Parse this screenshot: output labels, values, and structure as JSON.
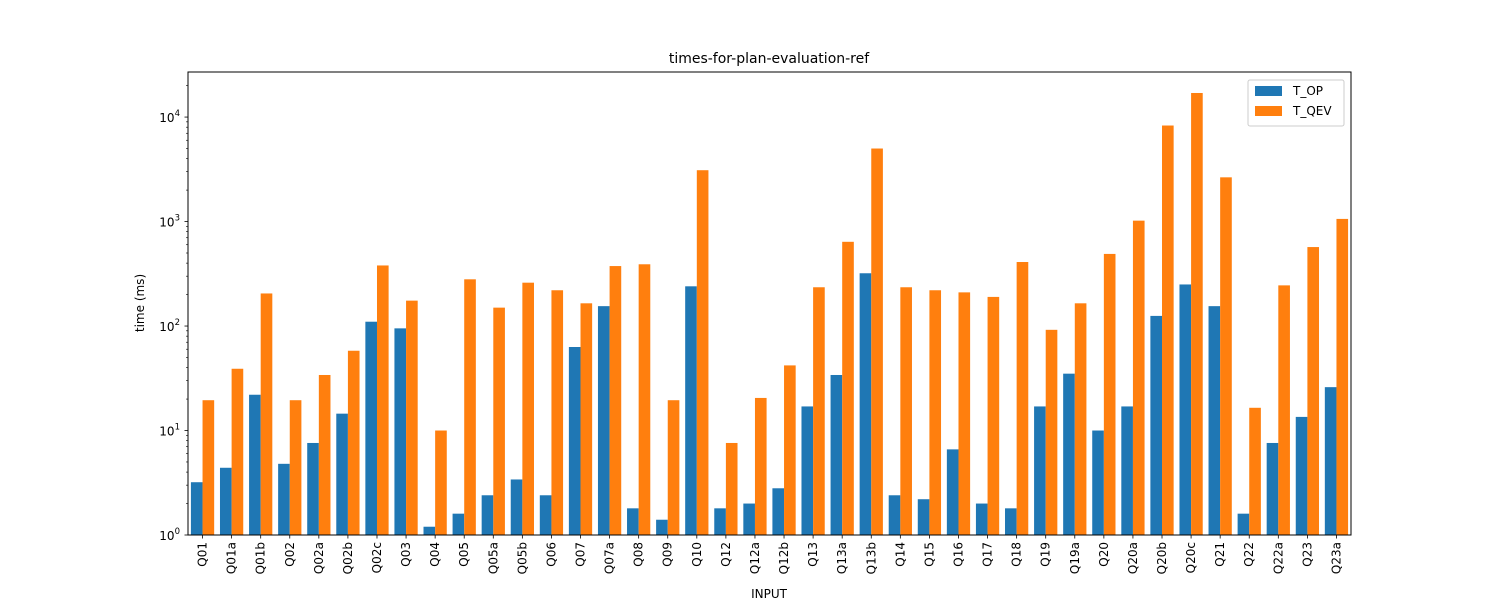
{
  "chart_data": {
    "type": "bar",
    "title": "times-for-plan-evaluation-ref",
    "xlabel": "INPUT",
    "ylabel": "time (ms)",
    "yscale": "log",
    "ylim": [
      1,
      27000
    ],
    "yticks": [
      {
        "value": 1,
        "base": "10",
        "exp": "0"
      },
      {
        "value": 10,
        "base": "10",
        "exp": "1"
      },
      {
        "value": 100,
        "base": "10",
        "exp": "2"
      },
      {
        "value": 1000,
        "base": "10",
        "exp": "3"
      },
      {
        "value": 10000,
        "base": "10",
        "exp": "4"
      }
    ],
    "grid": false,
    "legend_position": "top-right",
    "categories": [
      "Q01",
      "Q01a",
      "Q01b",
      "Q02",
      "Q02a",
      "Q02b",
      "Q02c",
      "Q03",
      "Q04",
      "Q05",
      "Q05a",
      "Q05b",
      "Q06",
      "Q07",
      "Q07a",
      "Q08",
      "Q09",
      "Q10",
      "Q12",
      "Q12a",
      "Q12b",
      "Q13",
      "Q13a",
      "Q13b",
      "Q14",
      "Q15",
      "Q16",
      "Q17",
      "Q18",
      "Q19",
      "Q19a",
      "Q20",
      "Q20a",
      "Q20b",
      "Q20c",
      "Q21",
      "Q22",
      "Q22a",
      "Q23",
      "Q23a"
    ],
    "series": [
      {
        "name": "T_OP",
        "color": "#1f77b4",
        "values": [
          3.2,
          4.4,
          22,
          4.8,
          7.6,
          14.5,
          110,
          95,
          1.2,
          1.6,
          2.4,
          3.4,
          2.4,
          63,
          155,
          1.8,
          1.4,
          240,
          1.8,
          2.0,
          2.8,
          17,
          34,
          320,
          2.4,
          2.2,
          6.6,
          2.0,
          1.8,
          17,
          35,
          10,
          17,
          125,
          250,
          155,
          1.6,
          7.6,
          13.5,
          26
        ]
      },
      {
        "name": "T_QEV",
        "color": "#ff7f0e",
        "values": [
          19.5,
          39,
          205,
          19.5,
          34,
          58,
          380,
          175,
          10,
          280,
          150,
          260,
          220,
          165,
          375,
          390,
          19.5,
          3100,
          7.6,
          20.5,
          42,
          235,
          640,
          5000,
          235,
          220,
          210,
          190,
          410,
          92,
          165,
          490,
          1020,
          8300,
          17000,
          2650,
          16.5,
          245,
          570,
          1060
        ]
      }
    ]
  }
}
